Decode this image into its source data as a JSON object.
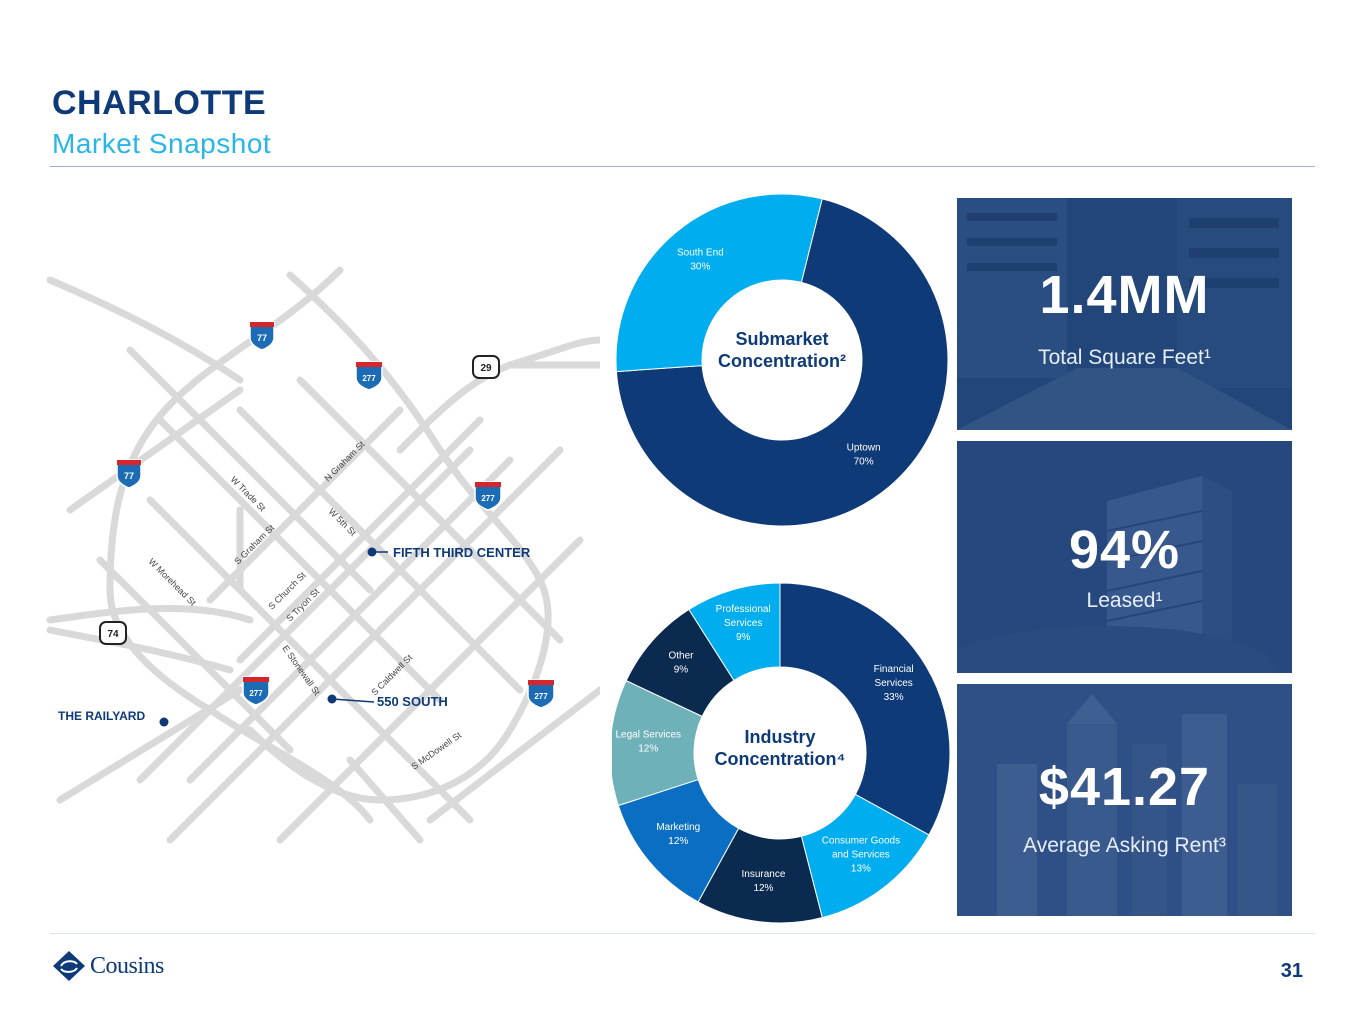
{
  "header": {
    "title": "CHARLOTTE",
    "subtitle": "Market Snapshot"
  },
  "map": {
    "markers": [
      {
        "name": "FIFTH THIRD CENTER"
      },
      {
        "name": "550 SOUTH"
      },
      {
        "name": "THE RAILYARD"
      }
    ],
    "shields": {
      "i77_a": "77",
      "i77_b": "77",
      "i277_a": "277",
      "i277_b": "277",
      "i277_c": "277",
      "i277_d": "277",
      "us29": "29",
      "us74": "74"
    },
    "streets": {
      "n_graham": "N Graham St",
      "w_trade": "W Trade St",
      "w_5th": "W 5th St",
      "s_graham": "S Graham St",
      "w_morehead": "W Morehead St",
      "s_church": "S Church St",
      "s_tryon": "S Tryon St",
      "e_stonewall": "E Stonewall St",
      "s_caldwell": "S Caldwell St",
      "s_mcdowell": "S McDowell St"
    }
  },
  "chart_data": [
    {
      "type": "pie",
      "title": "Submarket Concentration",
      "title_line1": "Submarket",
      "title_line2": "Concentration²",
      "categories": [
        "Uptown",
        "South End"
      ],
      "values": [
        70,
        30
      ],
      "value_labels": [
        "70%",
        "30%"
      ],
      "colors": [
        "#0e3a78",
        "#00adef"
      ]
    },
    {
      "type": "pie",
      "title": "Industry Concentration",
      "title_line1": "Industry",
      "title_line2": "Concentration⁴",
      "categories": [
        "Financial Services",
        "Consumer Goods and Services",
        "Insurance",
        "Marketing",
        "Legal Services",
        "Other",
        "Professional Services"
      ],
      "label_lines": [
        [
          "Financial",
          "Services"
        ],
        [
          "Consumer Goods",
          "and Services"
        ],
        [
          "Insurance"
        ],
        [
          "Marketing"
        ],
        [
          "Legal Services"
        ],
        [
          "Other"
        ],
        [
          "Professional",
          "Services"
        ]
      ],
      "values": [
        33,
        13,
        12,
        12,
        12,
        9,
        9
      ],
      "value_labels": [
        "33%",
        "13%",
        "12%",
        "12%",
        "12%",
        "9%",
        "9%"
      ],
      "colors": [
        "#0e3a78",
        "#00adef",
        "#0b2a50",
        "#0a6fc2",
        "#6fb1b9",
        "#0b2a50",
        "#00adef"
      ]
    }
  ],
  "stats": [
    {
      "value": "1.4MM",
      "label": "Total Square Feet¹"
    },
    {
      "value": "94%",
      "label": "Leased¹"
    },
    {
      "value": "$41.27",
      "label": "Average Asking Rent³"
    }
  ],
  "footer": {
    "logo_text": "Cousins",
    "page_number": "31"
  },
  "colors": {
    "navy": "#0e3a78",
    "cyan": "#00adef",
    "road": "#d9d9d9"
  }
}
